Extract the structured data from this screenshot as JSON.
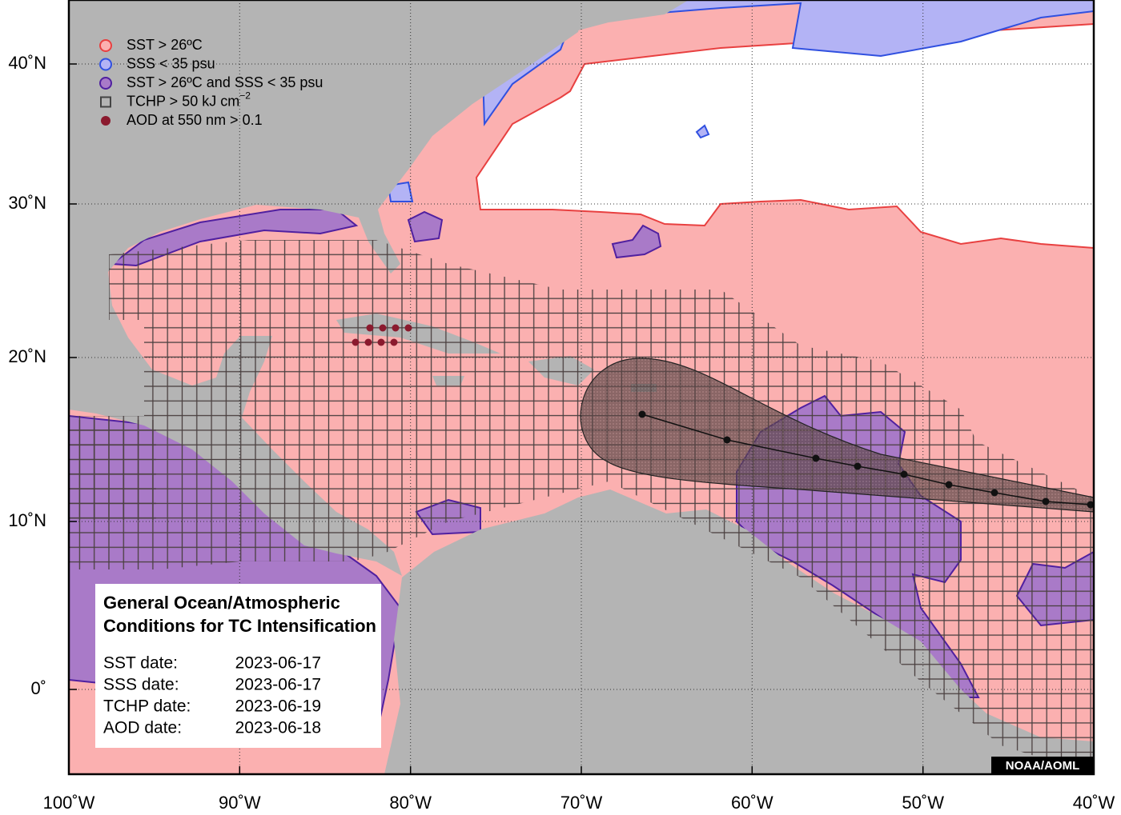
{
  "map": {
    "x_axis": [
      "100˚W",
      "90˚W",
      "80˚W",
      "70˚W",
      "60˚W",
      "50˚W",
      "40˚W"
    ],
    "y_axis": [
      "40˚N",
      "30˚N",
      "20˚N",
      "10˚N",
      "0˚"
    ],
    "legend": [
      {
        "label": "SST > 26ºC"
      },
      {
        "label": "SSS < 35 psu"
      },
      {
        "label": "SST > 26ºC and SSS < 35 psu"
      },
      {
        "label": "TCHP > 50 kJ cm",
        "superscript": "−2"
      },
      {
        "label": "AOD at 550 nm > 0.1"
      }
    ],
    "info_box": {
      "title_lines": [
        "General Ocean/Atmospheric",
        "Conditions for TC Intensification"
      ],
      "dates": [
        {
          "label": "SST date:",
          "date": "2023-06-17"
        },
        {
          "label": "SSS date:",
          "date": "2023-06-17"
        },
        {
          "label": "TCHP date:",
          "date": "2023-06-19"
        },
        {
          "label": "AOD date:",
          "date": "2023-06-18"
        }
      ]
    },
    "credit": "NOAA/AOML"
  }
}
